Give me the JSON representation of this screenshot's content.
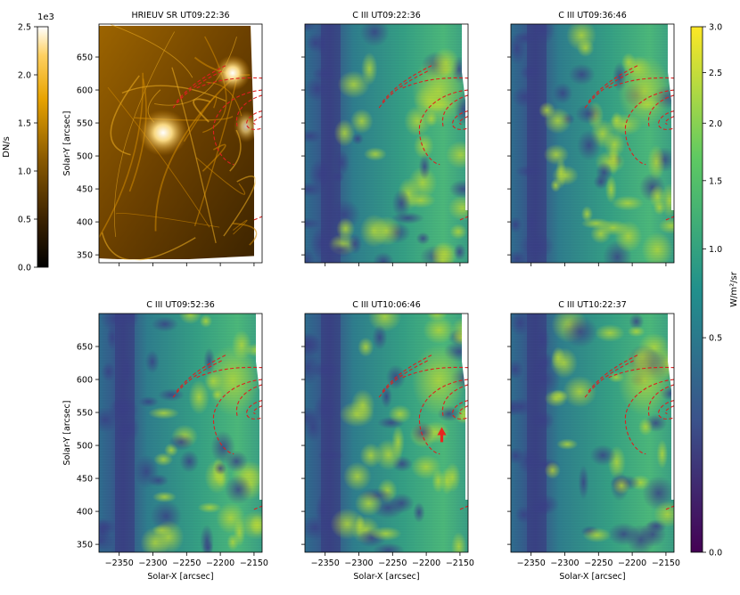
{
  "left_colorbar": {
    "exponent_label": "1e3",
    "unit_label": "DN/s",
    "ticks": [
      {
        "value": 0.0,
        "label": "0.0"
      },
      {
        "value": 0.5,
        "label": "0.5"
      },
      {
        "value": 1.0,
        "label": "1.0"
      },
      {
        "value": 1.5,
        "label": "1.5"
      },
      {
        "value": 2.0,
        "label": "2.0"
      },
      {
        "value": 2.5,
        "label": "2.5"
      }
    ],
    "range": [
      0,
      2.5
    ]
  },
  "right_colorbar": {
    "unit_label": "W/m²/sr",
    "scale": "sqrt",
    "ticks": [
      {
        "value": 0.0,
        "label": "0.0"
      },
      {
        "value": 0.5,
        "label": "0.5"
      },
      {
        "value": 1.0,
        "label": "1.0"
      },
      {
        "value": 1.5,
        "label": "1.5"
      },
      {
        "value": 2.0,
        "label": "2.0"
      },
      {
        "value": 2.5,
        "label": "2.5"
      },
      {
        "value": 3.0,
        "label": "3.0"
      }
    ],
    "range": [
      0,
      3.0
    ]
  },
  "axes": {
    "xlabel": "Solar-X [arcsec]",
    "ylabel": "Solar-Y [arcsec]",
    "xlim": [
      -2380,
      -2138
    ],
    "ylim": [
      338,
      700
    ],
    "x_ticks": [
      {
        "value": -2350,
        "label": "−2350"
      },
      {
        "value": -2300,
        "label": "−2300"
      },
      {
        "value": -2250,
        "label": "−2250"
      },
      {
        "value": -2200,
        "label": "−2200"
      },
      {
        "value": -2150,
        "label": "−2150"
      }
    ],
    "y_ticks": [
      {
        "value": 650,
        "label": "650"
      },
      {
        "value": 600,
        "label": "600"
      },
      {
        "value": 550,
        "label": "550"
      },
      {
        "value": 500,
        "label": "500"
      },
      {
        "value": 450,
        "label": "450"
      },
      {
        "value": 400,
        "label": "400"
      },
      {
        "value": 350,
        "label": "350"
      }
    ]
  },
  "panels": [
    {
      "title": "HRIEUV SR UT09:22:36",
      "kind": "euv"
    },
    {
      "title": "C III UT09:22:36",
      "kind": "ciii"
    },
    {
      "title": "C III UT09:36:46",
      "kind": "ciii"
    },
    {
      "title": "C III UT09:52:36",
      "kind": "ciii"
    },
    {
      "title": "C III UT10:06:46",
      "kind": "ciii",
      "arrow": true
    },
    {
      "title": "C III UT10:22:37",
      "kind": "ciii"
    }
  ],
  "colors": {
    "contour": "#dd1f1f",
    "arrow": "#e8251f",
    "euv_cmap": [
      "#000000",
      "#3b2200",
      "#8a5a00",
      "#e7a300",
      "#ffd060",
      "#ffffff"
    ],
    "viridis": [
      "#440154",
      "#3b528b",
      "#21908c",
      "#5ec962",
      "#fde725"
    ]
  }
}
